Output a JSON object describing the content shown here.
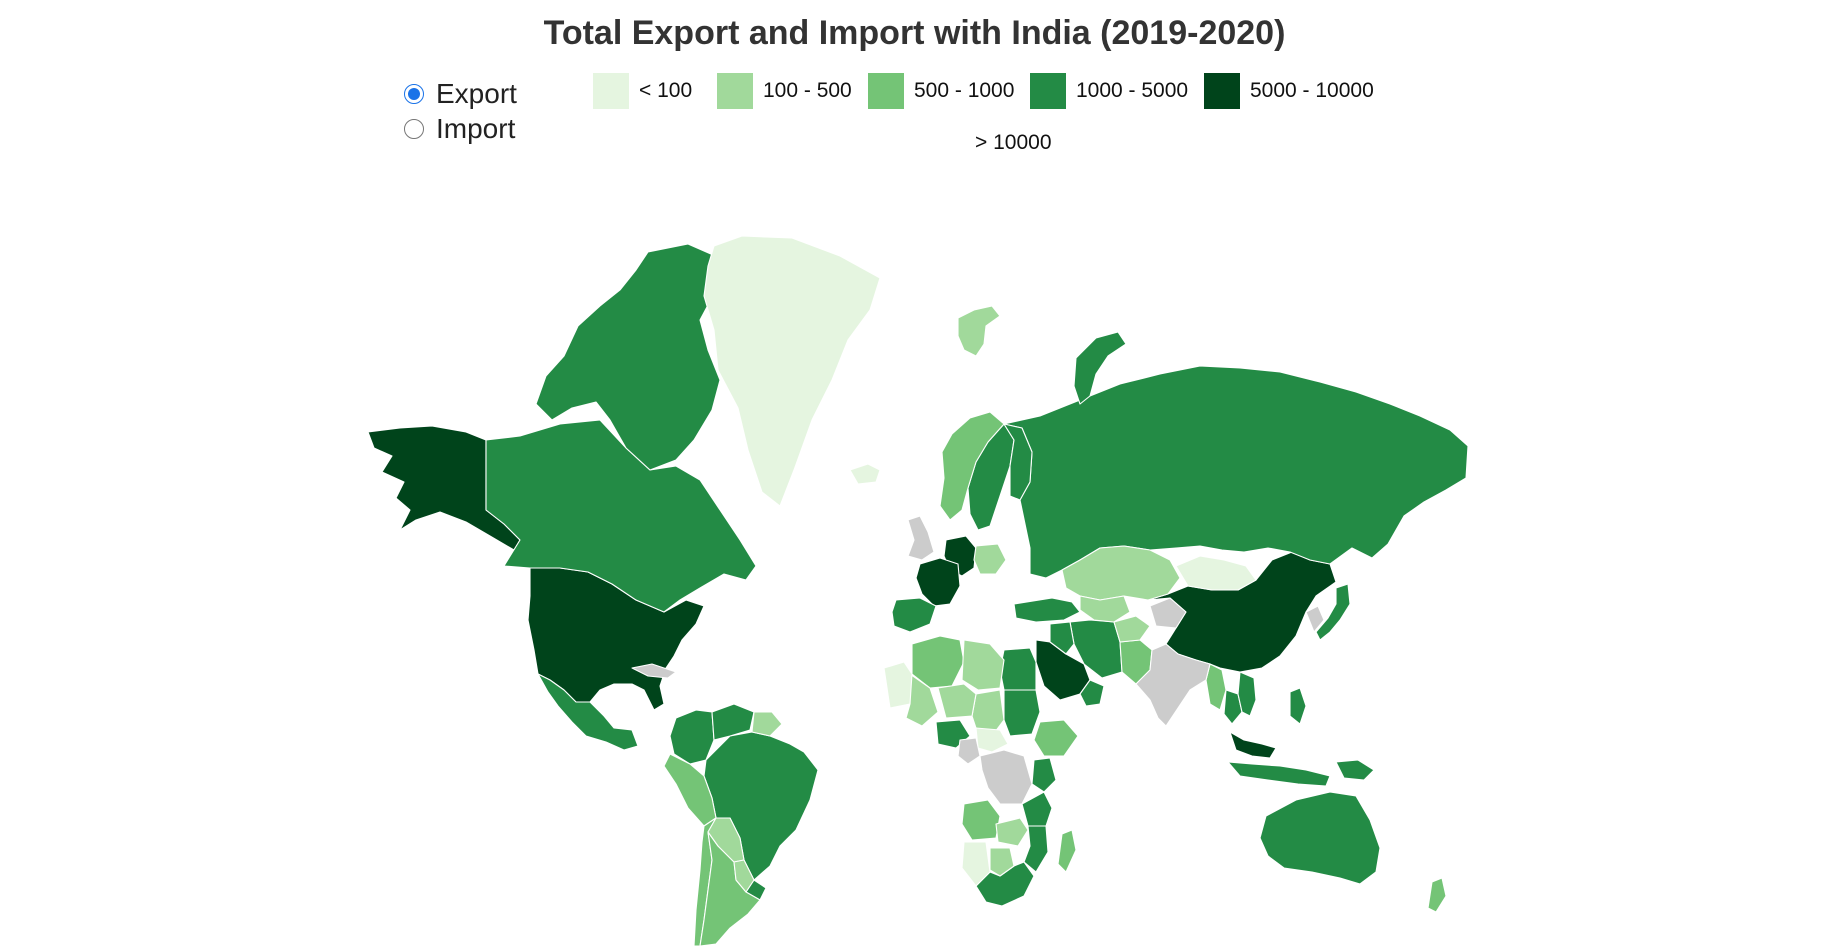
{
  "title": "Total Export and Import with India (2019-2020)",
  "mode_options": [
    {
      "label": "Export",
      "selected": true
    },
    {
      "label": "Import",
      "selected": false
    }
  ],
  "legend": [
    {
      "label": "< 100",
      "color": "#e5f5e0"
    },
    {
      "label": "100 - 500",
      "color": "#a1d99b"
    },
    {
      "label": "500 - 1000",
      "color": "#74c476"
    },
    {
      "label": "1000 - 5000",
      "color": "#238b45"
    },
    {
      "label": "5000 - 10000",
      "color": "#00441b"
    },
    {
      "label": "> 10000",
      "color": ""
    }
  ],
  "no_data_color": "#cccccc",
  "map_data": {
    "selected_metric": "Export",
    "regions": [
      {
        "name": "United States",
        "category": "5000 - 10000"
      },
      {
        "name": "Alaska",
        "category": "5000 - 10000"
      },
      {
        "name": "China",
        "category": "5000 - 10000"
      },
      {
        "name": "Saudi Arabia",
        "category": "5000 - 10000"
      },
      {
        "name": "Germany",
        "category": "5000 - 10000"
      },
      {
        "name": "France",
        "category": "5000 - 10000"
      },
      {
        "name": "Malaysia",
        "category": "5000 - 10000"
      },
      {
        "name": "Canada",
        "category": "1000 - 5000"
      },
      {
        "name": "Canadian Arctic",
        "category": "1000 - 5000"
      },
      {
        "name": "Mexico",
        "category": "1000 - 5000"
      },
      {
        "name": "Brazil",
        "category": "1000 - 5000"
      },
      {
        "name": "Colombia",
        "category": "1000 - 5000"
      },
      {
        "name": "Venezuela",
        "category": "1000 - 5000"
      },
      {
        "name": "Uruguay",
        "category": "1000 - 5000"
      },
      {
        "name": "Russia",
        "category": "1000 - 5000"
      },
      {
        "name": "Novaya Zemlya",
        "category": "1000 - 5000"
      },
      {
        "name": "Australia",
        "category": "1000 - 5000"
      },
      {
        "name": "Egypt",
        "category": "1000 - 5000"
      },
      {
        "name": "Sudan",
        "category": "1000 - 5000"
      },
      {
        "name": "Kenya",
        "category": "1000 - 5000"
      },
      {
        "name": "Tanzania",
        "category": "1000 - 5000"
      },
      {
        "name": "Mozambique",
        "category": "1000 - 5000"
      },
      {
        "name": "South Africa",
        "category": "1000 - 5000"
      },
      {
        "name": "Nigeria",
        "category": "1000 - 5000"
      },
      {
        "name": "Sweden",
        "category": "1000 - 5000"
      },
      {
        "name": "Finland",
        "category": "1000 - 5000"
      },
      {
        "name": "Spain",
        "category": "1000 - 5000"
      },
      {
        "name": "Turkey",
        "category": "1000 - 5000"
      },
      {
        "name": "Iran",
        "category": "1000 - 5000"
      },
      {
        "name": "Iraq",
        "category": "1000 - 5000"
      },
      {
        "name": "Oman",
        "category": "1000 - 5000"
      },
      {
        "name": "Japan",
        "category": "1000 - 5000"
      },
      {
        "name": "Indonesia",
        "category": "1000 - 5000"
      },
      {
        "name": "Philippines",
        "category": "1000 - 5000"
      },
      {
        "name": "Thailand",
        "category": "1000 - 5000"
      },
      {
        "name": "Vietnam",
        "category": "1000 - 5000"
      },
      {
        "name": "Papua New Guinea",
        "category": "1000 - 5000"
      },
      {
        "name": "Peru",
        "category": "500 - 1000"
      },
      {
        "name": "Chile",
        "category": "500 - 1000"
      },
      {
        "name": "Argentina",
        "category": "500 - 1000"
      },
      {
        "name": "Algeria",
        "category": "500 - 1000"
      },
      {
        "name": "Ethiopia",
        "category": "500 - 1000"
      },
      {
        "name": "Angola",
        "category": "500 - 1000"
      },
      {
        "name": "Madagascar",
        "category": "500 - 1000"
      },
      {
        "name": "Norway",
        "category": "500 - 1000"
      },
      {
        "name": "Myanmar",
        "category": "500 - 1000"
      },
      {
        "name": "Pakistan",
        "category": "500 - 1000"
      },
      {
        "name": "New Zealand",
        "category": "500 - 1000"
      },
      {
        "name": "Kazakhstan",
        "category": "100 - 500"
      },
      {
        "name": "Uzbekistan",
        "category": "100 - 500"
      },
      {
        "name": "Bolivia",
        "category": "100 - 500"
      },
      {
        "name": "Paraguay",
        "category": "100 - 500"
      },
      {
        "name": "Guyana",
        "category": "100 - 500"
      },
      {
        "name": "Libya",
        "category": "100 - 500"
      },
      {
        "name": "Chad",
        "category": "100 - 500"
      },
      {
        "name": "Niger",
        "category": "100 - 500"
      },
      {
        "name": "Mali",
        "category": "100 - 500"
      },
      {
        "name": "Zambia",
        "category": "100 - 500"
      },
      {
        "name": "Botswana",
        "category": "100 - 500"
      },
      {
        "name": "Svalbard",
        "category": "100 - 500"
      },
      {
        "name": "Poland",
        "category": "100 - 500"
      },
      {
        "name": "Afghanistan",
        "category": "100 - 500"
      },
      {
        "name": "Greenland",
        "category": "< 100"
      },
      {
        "name": "Iceland",
        "category": "< 100"
      },
      {
        "name": "Mongolia",
        "category": "< 100"
      },
      {
        "name": "Mauritania",
        "category": "< 100"
      },
      {
        "name": "Namibia",
        "category": "< 100"
      },
      {
        "name": "Central African Republic",
        "category": "< 100"
      },
      {
        "name": "India",
        "category": "no data"
      },
      {
        "name": "United Kingdom",
        "category": "no data"
      },
      {
        "name": "DR Congo",
        "category": "no data"
      },
      {
        "name": "Cameroon",
        "category": "no data"
      },
      {
        "name": "Korea",
        "category": "no data"
      },
      {
        "name": "Cuba",
        "category": "no data"
      },
      {
        "name": "Tibet region",
        "category": "no data"
      }
    ]
  }
}
